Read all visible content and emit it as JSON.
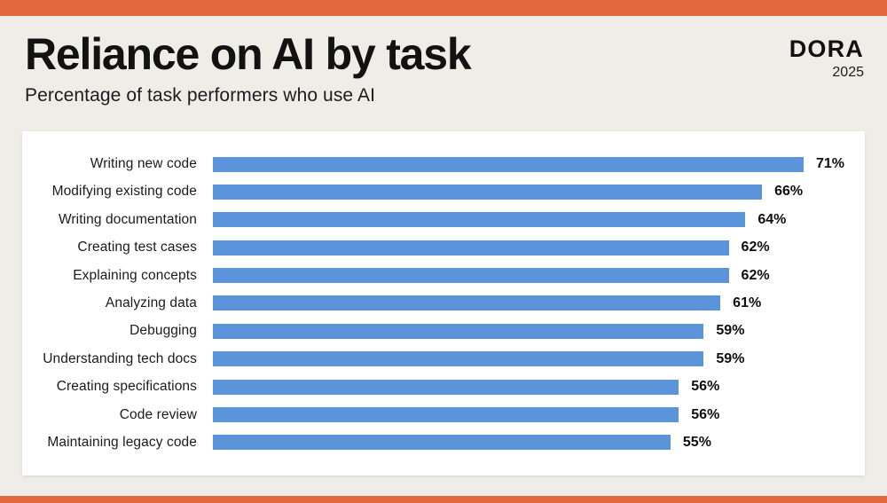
{
  "header": {
    "title": "Reliance on AI by task",
    "subtitle": "Percentage of task performers who use AI",
    "brand": "DORA",
    "year": "2025"
  },
  "chart_data": {
    "type": "bar",
    "orientation": "horizontal",
    "title": "Reliance on AI by task",
    "subtitle": "Percentage of task performers who use AI",
    "categories": [
      "Writing new code",
      "Modifying existing code",
      "Writing documentation",
      "Creating test cases",
      "Explaining concepts",
      "Analyzing data",
      "Debugging",
      "Understanding tech docs",
      "Creating specifications",
      "Code review",
      "Maintaining legacy code"
    ],
    "values": [
      71,
      66,
      64,
      62,
      62,
      61,
      59,
      59,
      56,
      56,
      55
    ],
    "unit": "%",
    "xlim": [
      0,
      78
    ],
    "grid": false,
    "legend": false,
    "value_label_position": "end-of-bar"
  },
  "colors": {
    "accent_orange": "#E2673C",
    "background": "#EFEDE8",
    "card": "#FFFFFF",
    "bar_blue": "#5C94DB",
    "text": "#161616"
  }
}
